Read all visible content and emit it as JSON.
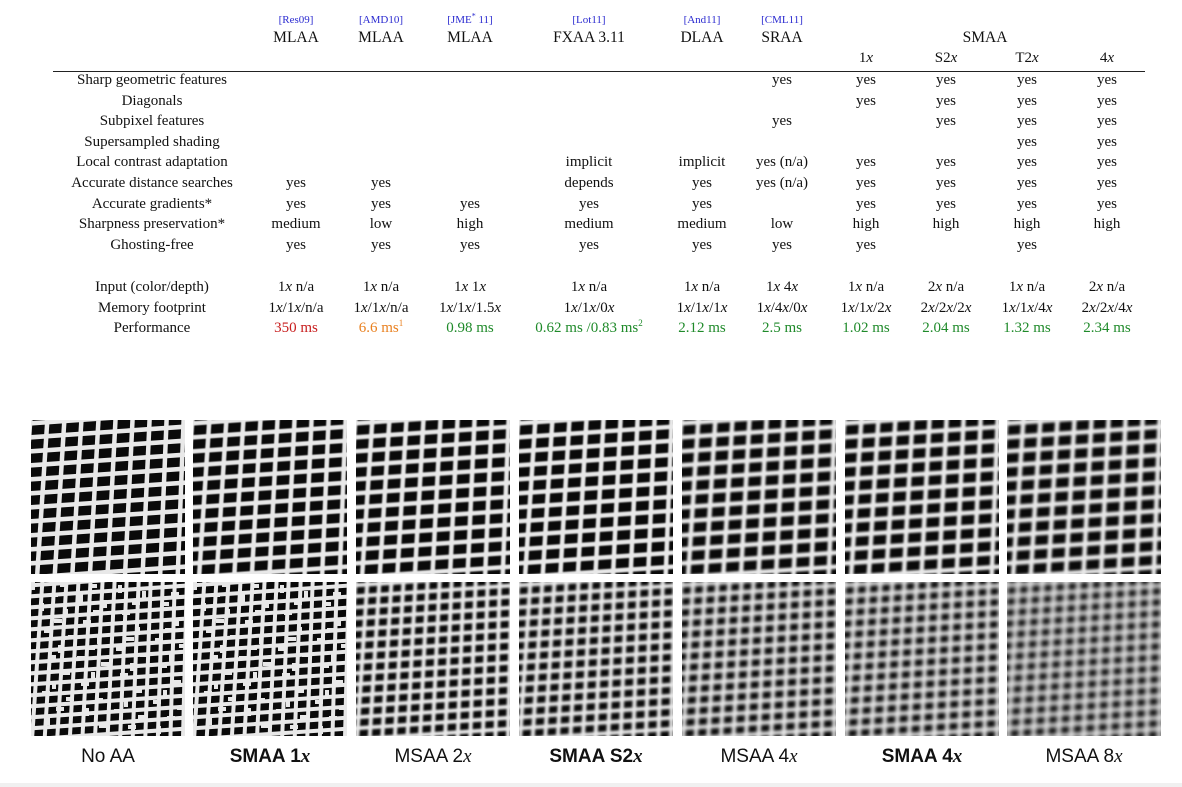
{
  "header": {
    "refs": [
      "[Res09]",
      "[AMD10]",
      "[JME",
      "*",
      " 11]",
      "[Lot11]",
      "[And11]",
      "[CML11]"
    ],
    "methods": [
      "MLAA",
      "MLAA",
      "MLAA",
      "FXAA 3.11",
      "DLAA",
      "SRAA"
    ],
    "smaa_group": "SMAA",
    "smaa_variants": [
      {
        "pre": "1",
        "it": "x",
        "post": ""
      },
      {
        "pre": "S2",
        "it": "x",
        "post": ""
      },
      {
        "pre": "T2",
        "it": "x",
        "post": ""
      },
      {
        "pre": "4",
        "it": "x",
        "post": ""
      }
    ]
  },
  "features": [
    "Sharp geometric features",
    "Diagonals",
    "Subpixel features",
    "Supersampled shading",
    "Local contrast adaptation",
    "Accurate distance searches",
    "Accurate gradients*",
    "Sharpness preservation*",
    "Ghosting-free"
  ],
  "feature_values": [
    [
      "",
      "",
      "",
      "",
      "",
      "yes",
      "yes",
      "yes",
      "yes",
      "yes"
    ],
    [
      "",
      "",
      "",
      "",
      "",
      "",
      "yes",
      "yes",
      "yes",
      "yes"
    ],
    [
      "",
      "",
      "",
      "",
      "",
      "yes",
      "",
      "yes",
      "yes",
      "yes"
    ],
    [
      "",
      "",
      "",
      "",
      "",
      "",
      "",
      "",
      "yes",
      "yes"
    ],
    [
      "",
      "",
      "",
      "implicit",
      "implicit",
      "yes (n/a)",
      "yes",
      "yes",
      "yes",
      "yes"
    ],
    [
      "yes",
      "yes",
      "",
      "depends",
      "yes",
      "yes (n/a)",
      "yes",
      "yes",
      "yes",
      "yes"
    ],
    [
      "yes",
      "yes",
      "yes",
      "yes",
      "yes",
      "",
      "yes",
      "yes",
      "yes",
      "yes"
    ],
    [
      "medium",
      "low",
      "high",
      "medium",
      "medium",
      "low",
      "high",
      "high",
      "high",
      "high"
    ],
    [
      "yes",
      "yes",
      "yes",
      "yes",
      "yes",
      "yes",
      "yes",
      "",
      "yes",
      ""
    ]
  ],
  "stats": {
    "labels": [
      "Input (color/depth)",
      "Memory footprint",
      "Performance"
    ],
    "input": [
      [
        "1",
        "x n/a"
      ],
      [
        "1",
        "x n/a"
      ],
      [
        "1",
        "x 1",
        "x"
      ],
      [
        "1",
        "x n/a"
      ],
      [
        "1",
        "x n/a"
      ],
      [
        "1",
        "x 4",
        "x"
      ],
      [
        "1",
        "x n/a"
      ],
      [
        "2",
        "x n/a"
      ],
      [
        "1",
        "x n/a"
      ],
      [
        "2",
        "x n/a"
      ]
    ],
    "memory": [
      "1x/1x/n/a",
      "1x/1x/n/a",
      "1x/1x/1.5x",
      "1x/1x/0x",
      "1x/1x/1x",
      "1x/4x/0x",
      "1x/1x/2x",
      "2x/2x/2x",
      "1x/1x/4x",
      "2x/2x/4x"
    ],
    "performance": [
      {
        "text": "350 ms",
        "color": "#c81e1e"
      },
      {
        "text": "6.6 ms",
        "sup": "1",
        "color": "#e9801f"
      },
      {
        "text": "0.98 ms",
        "color": "#1f8a2a"
      },
      {
        "text": "0.62 ms /0.83 ms",
        "sup": "2",
        "color": "#1f8a2a"
      },
      {
        "text": "2.12 ms",
        "color": "#1f8a2a"
      },
      {
        "text": "2.5 ms",
        "color": "#1f8a2a"
      },
      {
        "text": "1.02 ms",
        "color": "#1f8a2a"
      },
      {
        "text": "2.04 ms",
        "color": "#1f8a2a"
      },
      {
        "text": "1.32 ms",
        "color": "#1f8a2a"
      },
      {
        "text": "2.34 ms",
        "color": "#1f8a2a"
      }
    ]
  },
  "comparison": {
    "captions": [
      {
        "pre": "No AA",
        "it": "",
        "bold": false
      },
      {
        "pre": "SMAA 1",
        "it": "x",
        "bold": true
      },
      {
        "pre": "MSAA 2",
        "it": "x",
        "bold": false
      },
      {
        "pre": "SMAA S2",
        "it": "x",
        "bold": true
      },
      {
        "pre": "MSAA 4",
        "it": "x",
        "bold": false
      },
      {
        "pre": "SMAA 4",
        "it": "x",
        "bold": true
      },
      {
        "pre": "MSAA 8",
        "it": "x",
        "bold": false
      }
    ],
    "image_subject": "wire-grid-texture"
  }
}
